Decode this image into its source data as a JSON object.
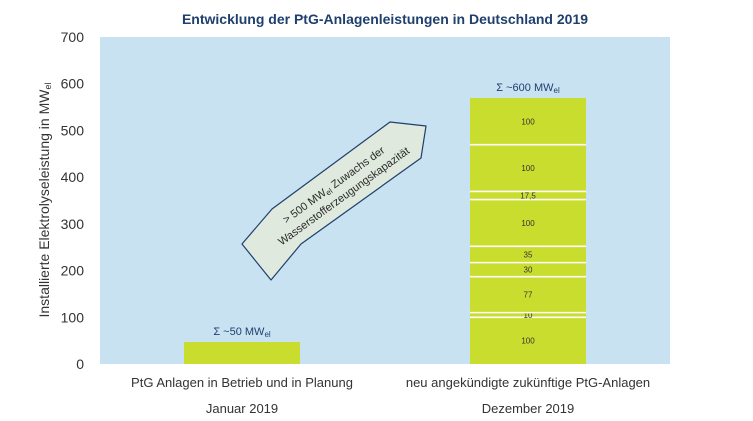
{
  "chart_data": {
    "type": "bar",
    "stacked": true,
    "title": "Entwicklung der PtG-Anlagenleistungen in Deutschland 2019",
    "ylabel": "Installierte Elektrolyseleistung in MW",
    "ylabel_sub": "el",
    "ylim": [
      0,
      700
    ],
    "yticks": [
      0,
      100,
      200,
      300,
      400,
      500,
      600,
      700
    ],
    "grid": false,
    "categories": [
      {
        "line1": "PtG Anlagen in Betrieb und in Planung",
        "line2": "Januar 2019"
      },
      {
        "line1": "neu angekündigte zukünftige PtG-Anlagen",
        "line2": "Dezember 2019"
      }
    ],
    "bars": [
      {
        "total_label": "Σ ~50 MW",
        "total_sub": "el",
        "segments": [
          {
            "value": 47,
            "label": ""
          }
        ]
      },
      {
        "total_label": "Σ ~600 MW",
        "total_sub": "el",
        "segments": [
          {
            "value": 100,
            "label": "100"
          },
          {
            "value": 10,
            "label": "10"
          },
          {
            "value": 77,
            "label": "77"
          },
          {
            "value": 30,
            "label": "30"
          },
          {
            "value": 35,
            "label": "35"
          },
          {
            "value": 100,
            "label": "100"
          },
          {
            "value": 17.5,
            "label": "17,5"
          },
          {
            "value": 100,
            "label": "100"
          },
          {
            "value": 100,
            "label": "100"
          }
        ]
      }
    ],
    "annotation": {
      "line1_pre": "> 500 MW",
      "line1_sub": "el",
      "line1_post": " Zuwachs der",
      "line2": "Wasserstofferzeugungskapazität"
    },
    "colors": {
      "plot_bg": "#c8e2f2",
      "bar": "#c8dd2e",
      "arrow_fill": "#dfe9dd",
      "arrow_stroke": "#1f3f6e",
      "axis_text": "#333333",
      "title": "#1f3f6e"
    }
  }
}
